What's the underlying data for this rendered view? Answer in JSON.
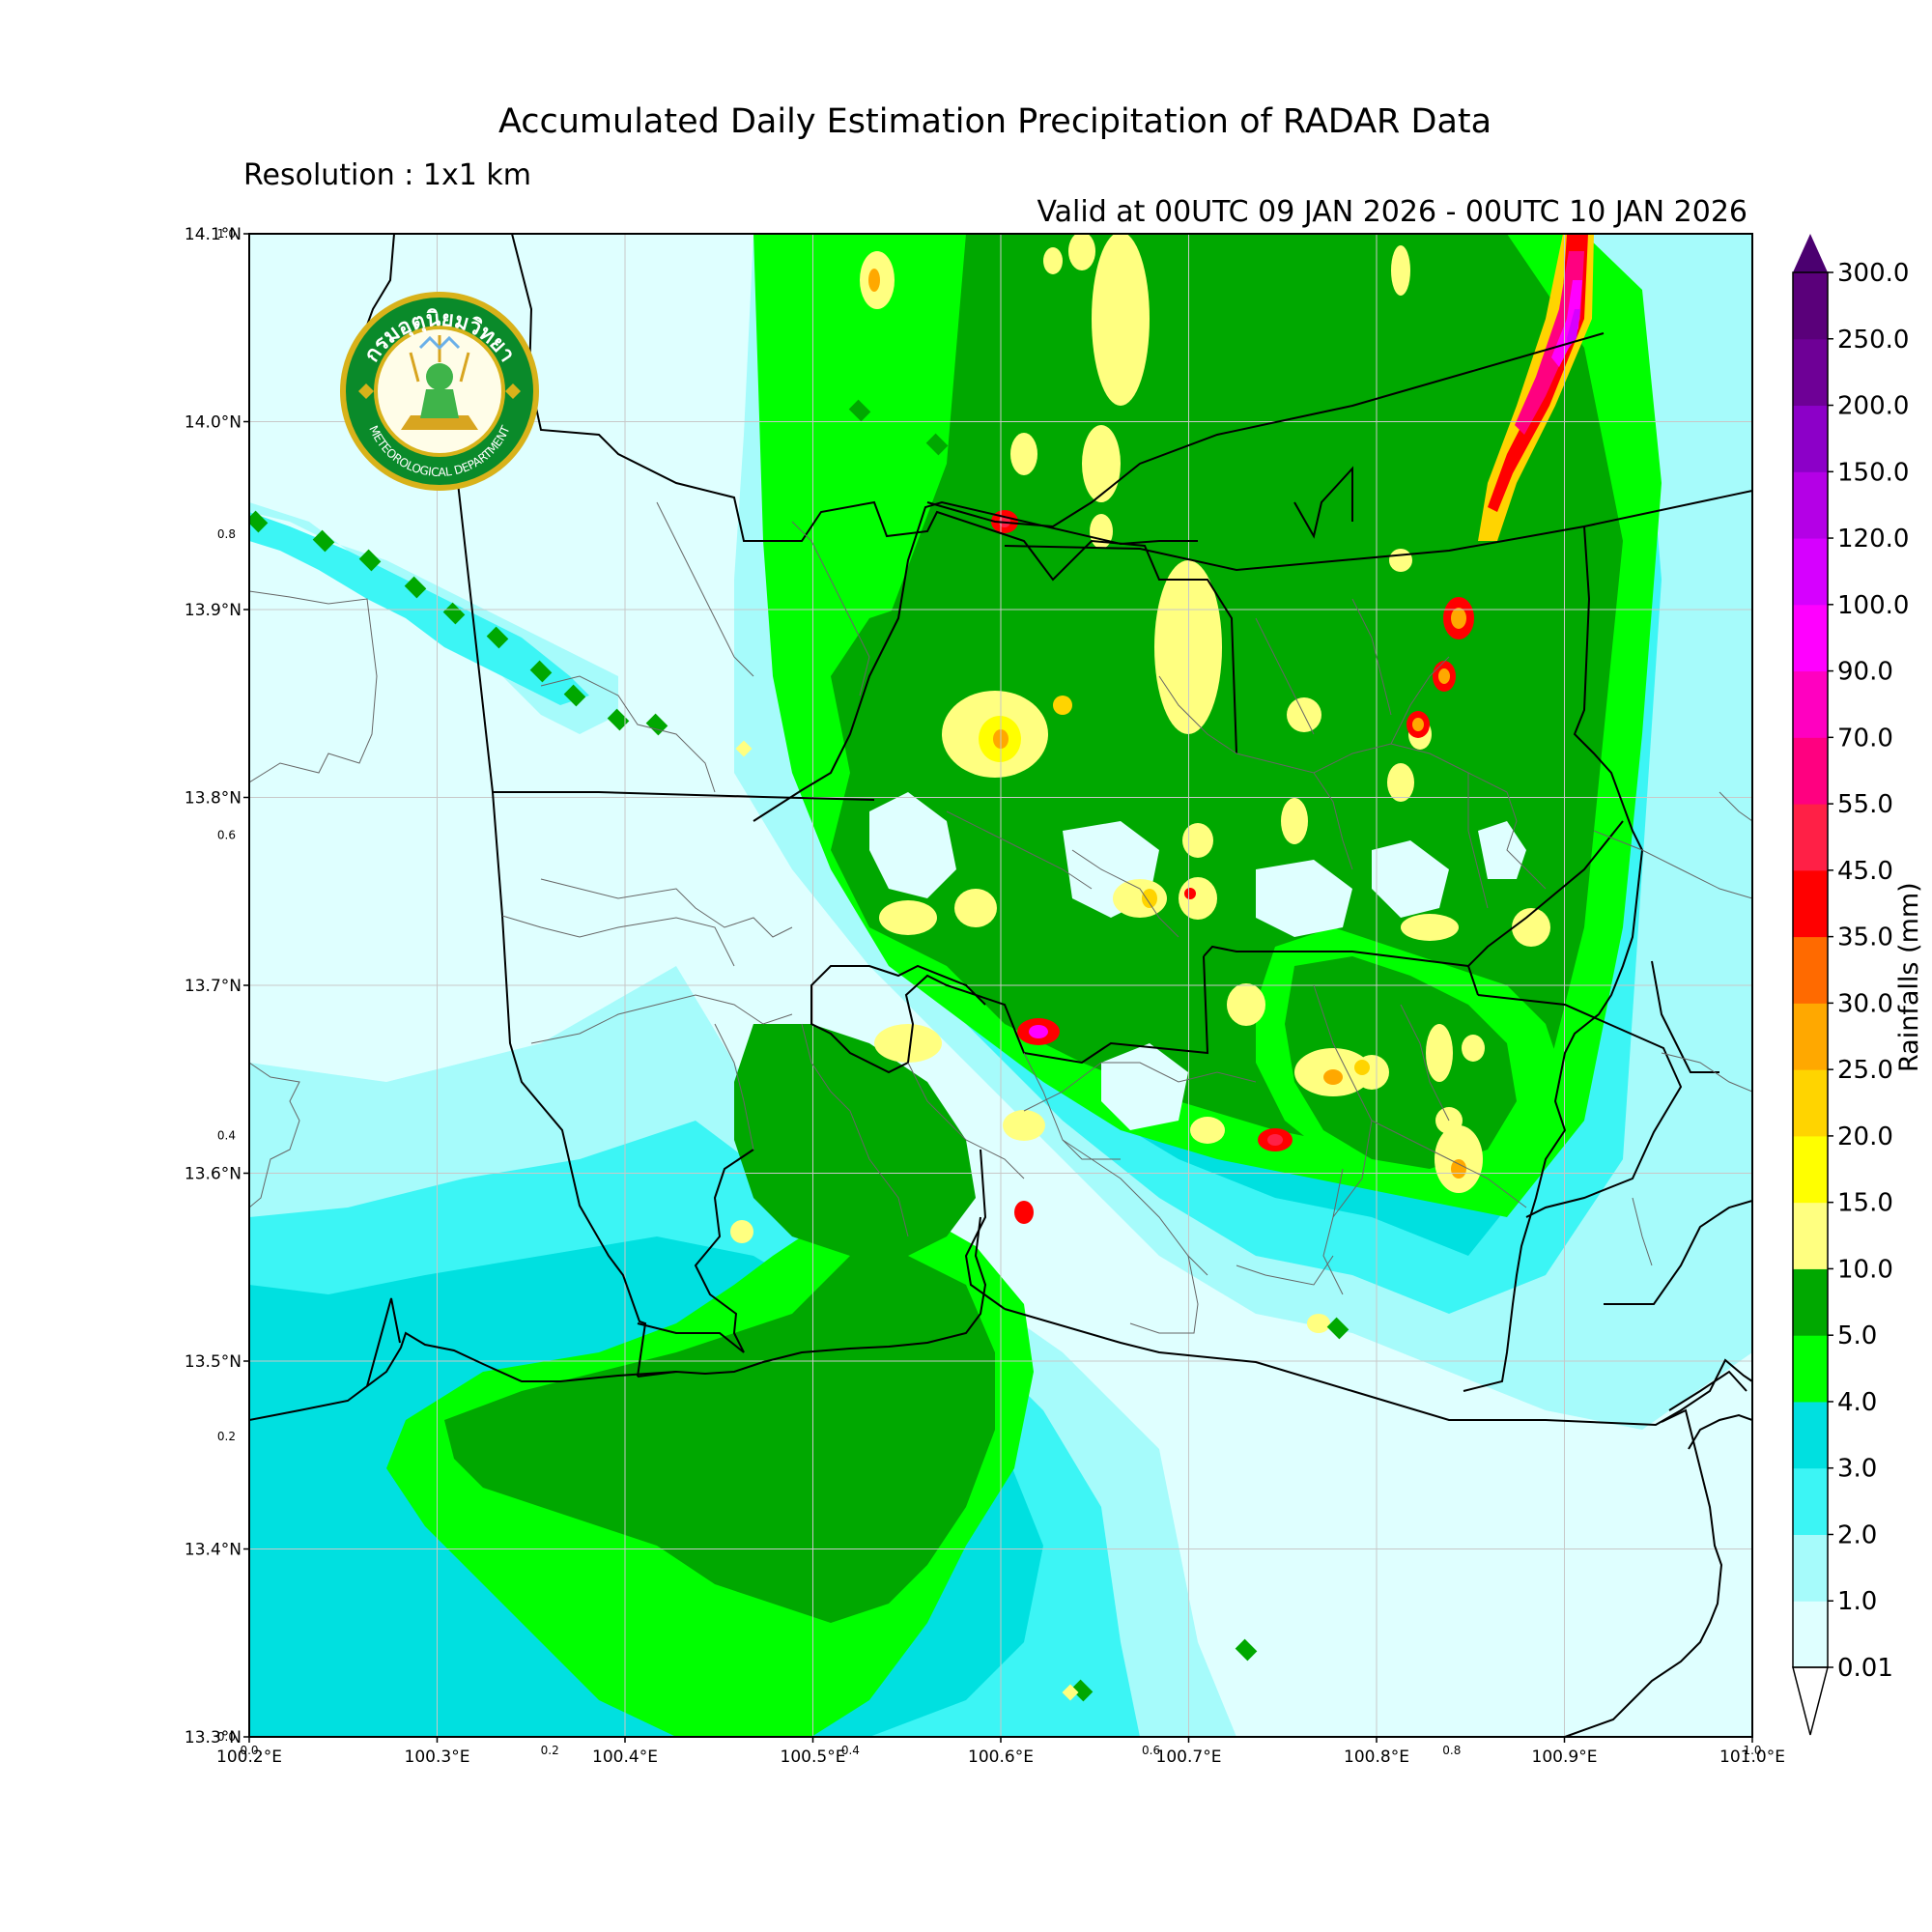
{
  "title": "Accumulated Daily Estimation Precipitation of RADAR Data",
  "resolution": "Resolution : 1x1 km",
  "valid": "Valid at 00UTC 09 JAN 2026 - 00UTC 10 JAN 2026",
  "logo": {
    "thai_text": "กรมอุตุนิยมวิทยา",
    "english_text": "METEOROLOGICAL DEPARTMENT"
  },
  "map": {
    "lon_range": [
      100.2,
      101.0
    ],
    "lat_range": [
      13.3,
      14.1
    ],
    "lat_labels": [
      "14.1°N",
      "14.0°N",
      "13.9°N",
      "13.8°N",
      "13.7°N",
      "13.6°N",
      "13.5°N",
      "13.4°N",
      "13.3°N"
    ],
    "lon_labels": [
      "100.2°E",
      "100.3°E",
      "100.4°E",
      "100.5°E",
      "100.6°E",
      "100.7°E",
      "100.8°E",
      "100.9°E",
      "101.0°E"
    ],
    "inner_y_ticks": [
      "1.0",
      "0.8",
      "0.6",
      "0.4",
      "0.2",
      "0.0"
    ],
    "inner_x_ticks": [
      "0.0",
      "0.2",
      "0.4",
      "0.6",
      "0.8",
      "1.0"
    ]
  },
  "colorbar": {
    "title": "Rainfalls (mm)",
    "levels": [
      "0.01",
      "1.0",
      "2.0",
      "3.0",
      "4.0",
      "5.0",
      "10.0",
      "15.0",
      "20.0",
      "25.0",
      "30.0",
      "35.0",
      "45.0",
      "55.0",
      "70.0",
      "90.0",
      "100.0",
      "120.0",
      "150.0",
      "200.0",
      "250.0",
      "300.0"
    ],
    "colors": [
      "#dfffff",
      "#a6fbfb",
      "#3cf5f5",
      "#00e0e0",
      "#00ff00",
      "#00a800",
      "#ffff80",
      "#ffff00",
      "#ffd400",
      "#ffa800",
      "#ff6a00",
      "#ff0000",
      "#ff2046",
      "#ff0080",
      "#ff00c0",
      "#ff00ff",
      "#d600ff",
      "#b400e6",
      "#8c00c8",
      "#6e0096",
      "#5a007a"
    ]
  },
  "rain_colors": {
    "c0": "#dfffff",
    "c1": "#a6fbfb",
    "c2": "#3cf5f5",
    "c3": "#00e0e0",
    "c4": "#00ff00",
    "c5": "#00a800",
    "c10": "#ffff80",
    "c15": "#ffff00",
    "c20": "#ffd400",
    "c25": "#ffa800",
    "c35": "#ff0000",
    "c55": "#ff2046",
    "c70": "#ff0080",
    "c120": "#ff00ff",
    "c150": "#d600ff",
    "c200": "#b400e6"
  }
}
